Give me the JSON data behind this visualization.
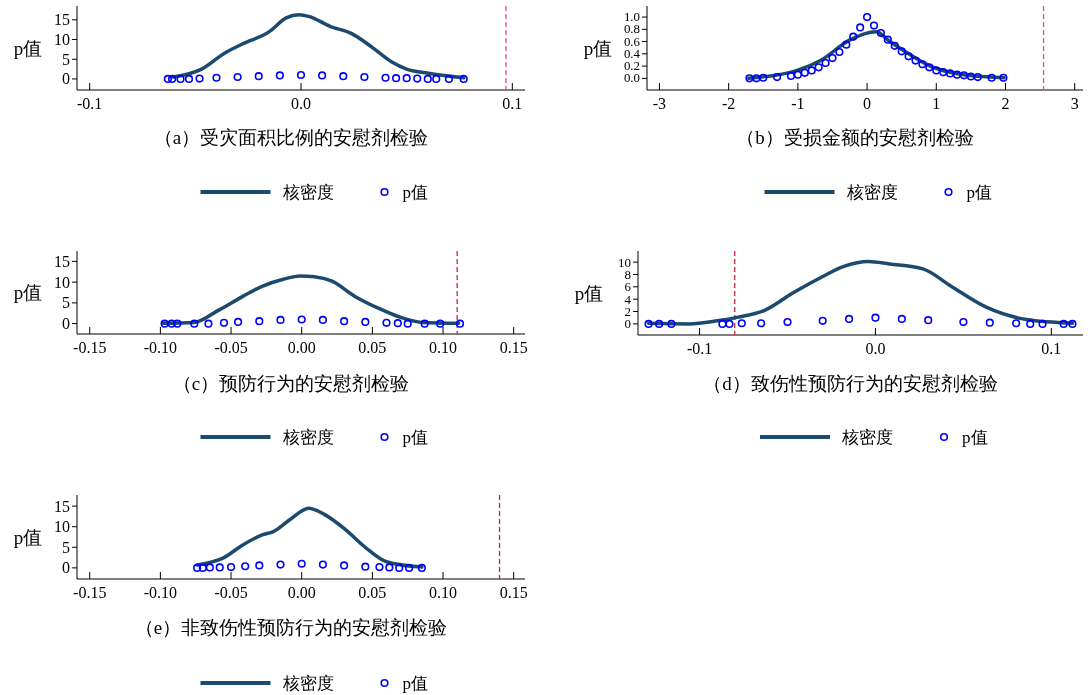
{
  "chart_data": [
    {
      "type": "line",
      "title": "（a）受灾面积比例的安慰剂检验",
      "ylabel": "p值",
      "legend": "bottom",
      "xlim": [
        -0.106,
        0.106
      ],
      "ylim": [
        -2.8,
        18.5
      ],
      "xticks": [
        -0.1,
        {
          "value": 0,
          "label": "0.0"
        },
        0.1
      ],
      "yticks": [
        0,
        5,
        10,
        15
      ],
      "ref_lines": [
        {
          "axis": "x",
          "value": 0.097,
          "color": "#e0507a",
          "line_style": "dashed"
        }
      ],
      "series": [
        {
          "name": "核密度",
          "type": "line",
          "color": "#1b4a6e",
          "marker": "none",
          "x": [
            -0.0607,
            -0.047,
            -0.036,
            -0.028,
            -0.015,
            -0.007,
            -0.001,
            0.004,
            0.014,
            0.024,
            0.034,
            0.043,
            0.05,
            0.061,
            0.077
          ],
          "values": [
            0.5,
            2.5,
            6.6,
            8.8,
            12,
            15.5,
            16.3,
            15.8,
            13.3,
            11.5,
            7.9,
            4.3,
            2.5,
            1.4,
            0.3
          ]
        },
        {
          "name": "p值",
          "type": "scatter",
          "color": "#0000ff",
          "marker": "circle",
          "x": [
            -0.063,
            -0.061,
            -0.057,
            -0.053,
            -0.048,
            -0.04,
            -0.03,
            -0.02,
            -0.01,
            0,
            0.01,
            0.02,
            0.03,
            0.04,
            0.045,
            0.05,
            0.055,
            0.06,
            0.064,
            0.07,
            0.077
          ],
          "values": [
            0,
            0,
            0,
            0,
            0.1,
            0.3,
            0.5,
            0.7,
            0.9,
            1,
            0.9,
            0.7,
            0.5,
            0.3,
            0.2,
            0.2,
            0.1,
            0,
            0,
            0,
            0
          ]
        }
      ]
    },
    {
      "type": "line",
      "title": "（b）受损金额的安慰剂检验",
      "ylabel": "p值",
      "legend": "bottom",
      "xlim": [
        -3.18,
        3.12
      ],
      "ylim": [
        -0.19,
        1.18
      ],
      "xticks": [
        -3,
        -2,
        -1,
        0,
        1,
        2,
        3
      ],
      "yticks": [
        {
          "value": 0,
          "label": "0.0"
        },
        0.2,
        0.4,
        0.6,
        0.8,
        {
          "value": 1,
          "label": "1.0"
        }
      ],
      "ref_lines": [
        {
          "axis": "x",
          "value": 2.55,
          "color": "#e0507a",
          "line_style": "dashed"
        }
      ],
      "series": [
        {
          "name": "核密度",
          "type": "line",
          "color": "#1b4a6e",
          "marker": "none",
          "x": [
            -1.71,
            -1.01,
            -0.66,
            -0.26,
            0.13,
            0.33,
            0.63,
            0.93,
            1.33,
            1.98
          ],
          "values": [
            0,
            0.13,
            0.3,
            0.62,
            0.76,
            0.6,
            0.38,
            0.19,
            0.07,
            0.01
          ]
        },
        {
          "name": "p值",
          "type": "scatter",
          "color": "#0000ff",
          "marker": "circle",
          "x": [
            -1.7,
            -1.6,
            -1.5,
            -1.3,
            -1.1,
            -1.0,
            -0.9,
            -0.8,
            -0.7,
            -0.6,
            -0.5,
            -0.4,
            -0.3,
            -0.2,
            -0.1,
            0,
            0.1,
            0.2,
            0.3,
            0.4,
            0.5,
            0.6,
            0.7,
            0.8,
            0.9,
            1.0,
            1.1,
            1.2,
            1.3,
            1.4,
            1.5,
            1.6,
            1.8,
            1.97
          ],
          "values": [
            0,
            0,
            0.01,
            0.02,
            0.04,
            0.06,
            0.09,
            0.13,
            0.18,
            0.25,
            0.33,
            0.43,
            0.55,
            0.68,
            0.83,
            1.0,
            0.86,
            0.74,
            0.63,
            0.53,
            0.44,
            0.36,
            0.29,
            0.23,
            0.18,
            0.13,
            0.1,
            0.08,
            0.06,
            0.05,
            0.03,
            0.02,
            0.01,
            0.01
          ]
        }
      ]
    },
    {
      "type": "line",
      "title": "（c）预防行为的安慰剂检验",
      "ylabel": "p值",
      "legend": "bottom",
      "xlim": [
        -0.159,
        0.158
      ],
      "ylim": [
        -2.5,
        17.5
      ],
      "xticks": [
        {
          "value": -0.15,
          "label": "-0.15"
        },
        {
          "value": -0.1,
          "label": "-0.10"
        },
        {
          "value": -0.05,
          "label": "-0.05"
        },
        {
          "value": 0,
          "label": "0.00"
        },
        {
          "value": 0.05,
          "label": "0.05"
        },
        {
          "value": 0.1,
          "label": "0.10"
        },
        {
          "value": 0.15,
          "label": "0.15"
        }
      ],
      "yticks": [
        0,
        5,
        10,
        15
      ],
      "ref_lines": [
        {
          "axis": "x",
          "value": 0.11,
          "color": "#cc1f3c",
          "line_style": "dashed"
        }
      ],
      "series": [
        {
          "name": "核密度",
          "type": "line",
          "color": "#1b4a6e",
          "marker": "none",
          "x": [
            -0.098,
            -0.076,
            -0.059,
            -0.042,
            -0.028,
            -0.013,
            -0.001,
            0.009,
            0.021,
            0.038,
            0.055,
            0.07,
            0.085,
            0.111
          ],
          "values": [
            0.1,
            0.3,
            3.2,
            6.5,
            9,
            10.7,
            11.5,
            11.3,
            10.3,
            6.5,
            3.6,
            1.5,
            0.3,
            0.1
          ]
        },
        {
          "name": "p值",
          "type": "scatter",
          "color": "#0000ff",
          "marker": "circle",
          "x": [
            -0.097,
            -0.092,
            -0.088,
            -0.076,
            -0.066,
            -0.055,
            -0.045,
            -0.03,
            -0.015,
            0,
            0.015,
            0.03,
            0.045,
            0.06,
            0.068,
            0.075,
            0.087,
            0.098,
            0.112
          ],
          "values": [
            0,
            0,
            0,
            0,
            0,
            0.2,
            0.4,
            0.6,
            0.9,
            1,
            0.9,
            0.6,
            0.4,
            0.2,
            0.1,
            0,
            0,
            0,
            0
          ]
        }
      ]
    },
    {
      "type": "line",
      "title": "（d）致伤性预防行为的安慰剂检验",
      "ylabel": "p值",
      "legend": "bottom",
      "xlim": [
        -0.135,
        0.118
      ],
      "ylim": [
        -1.8,
        11.8
      ],
      "xticks": [
        -0.1,
        {
          "value": 0,
          "label": "0.0"
        },
        0.1
      ],
      "yticks": [
        0,
        2,
        4,
        6,
        8,
        10
      ],
      "ref_lines": [
        {
          "axis": "x",
          "value": -0.08,
          "color": "#cc1f3c",
          "line_style": "dashed"
        }
      ],
      "series": [
        {
          "name": "核密度",
          "type": "line",
          "color": "#1b4a6e",
          "marker": "none",
          "x": [
            -0.129,
            -0.106,
            -0.09,
            -0.078,
            -0.063,
            -0.047,
            -0.031,
            -0.018,
            -0.004,
            0.008,
            0.027,
            0.043,
            0.063,
            0.086,
            0.112
          ],
          "values": [
            0.1,
            0,
            0.5,
            1.1,
            2.2,
            5,
            7.5,
            9.3,
            10.1,
            9.7,
            8.9,
            6.1,
            2.7,
            0.7,
            0.1
          ]
        },
        {
          "name": "p值",
          "type": "scatter",
          "color": "#0000ff",
          "marker": "circle",
          "x": [
            -0.129,
            -0.123,
            -0.116,
            -0.087,
            -0.083,
            -0.076,
            -0.065,
            -0.05,
            -0.03,
            -0.015,
            0,
            0.015,
            0.03,
            0.05,
            0.065,
            0.08,
            0.088,
            0.095,
            0.107,
            0.112
          ],
          "values": [
            0,
            0,
            0,
            0,
            0,
            0.1,
            0.1,
            0.3,
            0.5,
            0.8,
            1,
            0.8,
            0.6,
            0.3,
            0.2,
            0.1,
            0,
            0,
            0,
            0
          ]
        }
      ]
    },
    {
      "type": "line",
      "title": "（e）非致伤性预防行为的安慰剂检验",
      "ylabel": "p值",
      "legend": "bottom",
      "xlim": [
        -0.159,
        0.158
      ],
      "ylim": [
        -2.7,
        17.7
      ],
      "xticks": [
        {
          "value": -0.15,
          "label": "-0.15"
        },
        {
          "value": -0.1,
          "label": "-0.10"
        },
        {
          "value": -0.05,
          "label": "-0.05"
        },
        {
          "value": 0,
          "label": "0.00"
        },
        {
          "value": 0.05,
          "label": "0.05"
        },
        {
          "value": 0.1,
          "label": "0.10"
        },
        {
          "value": 0.15,
          "label": "0.15"
        }
      ],
      "yticks": [
        0,
        5,
        10,
        15
      ],
      "ref_lines": [
        {
          "axis": "x",
          "value": 0.14,
          "color": "#cc1f3c",
          "line_style": "dashed"
        }
      ],
      "series": [
        {
          "name": "核密度",
          "type": "line",
          "color": "#1b4a6e",
          "marker": "none",
          "x": [
            -0.074,
            -0.055,
            -0.042,
            -0.028,
            -0.02,
            -0.008,
            0.005,
            0.016,
            0.031,
            0.045,
            0.06,
            0.085
          ],
          "values": [
            0.7,
            2.5,
            5.5,
            8,
            8.8,
            11.8,
            14.5,
            13,
            9.3,
            5,
            1.5,
            0.2
          ]
        },
        {
          "name": "p值",
          "type": "scatter",
          "color": "#0000ff",
          "marker": "circle",
          "x": [
            -0.074,
            -0.07,
            -0.065,
            -0.058,
            -0.05,
            -0.04,
            -0.03,
            -0.015,
            0,
            0.015,
            0.03,
            0.045,
            0.055,
            0.062,
            0.069,
            0.076,
            0.085
          ],
          "values": [
            0,
            0,
            0.1,
            0.1,
            0.2,
            0.4,
            0.6,
            0.8,
            1,
            0.8,
            0.6,
            0.3,
            0.2,
            0.1,
            0,
            0,
            0
          ]
        }
      ]
    }
  ]
}
